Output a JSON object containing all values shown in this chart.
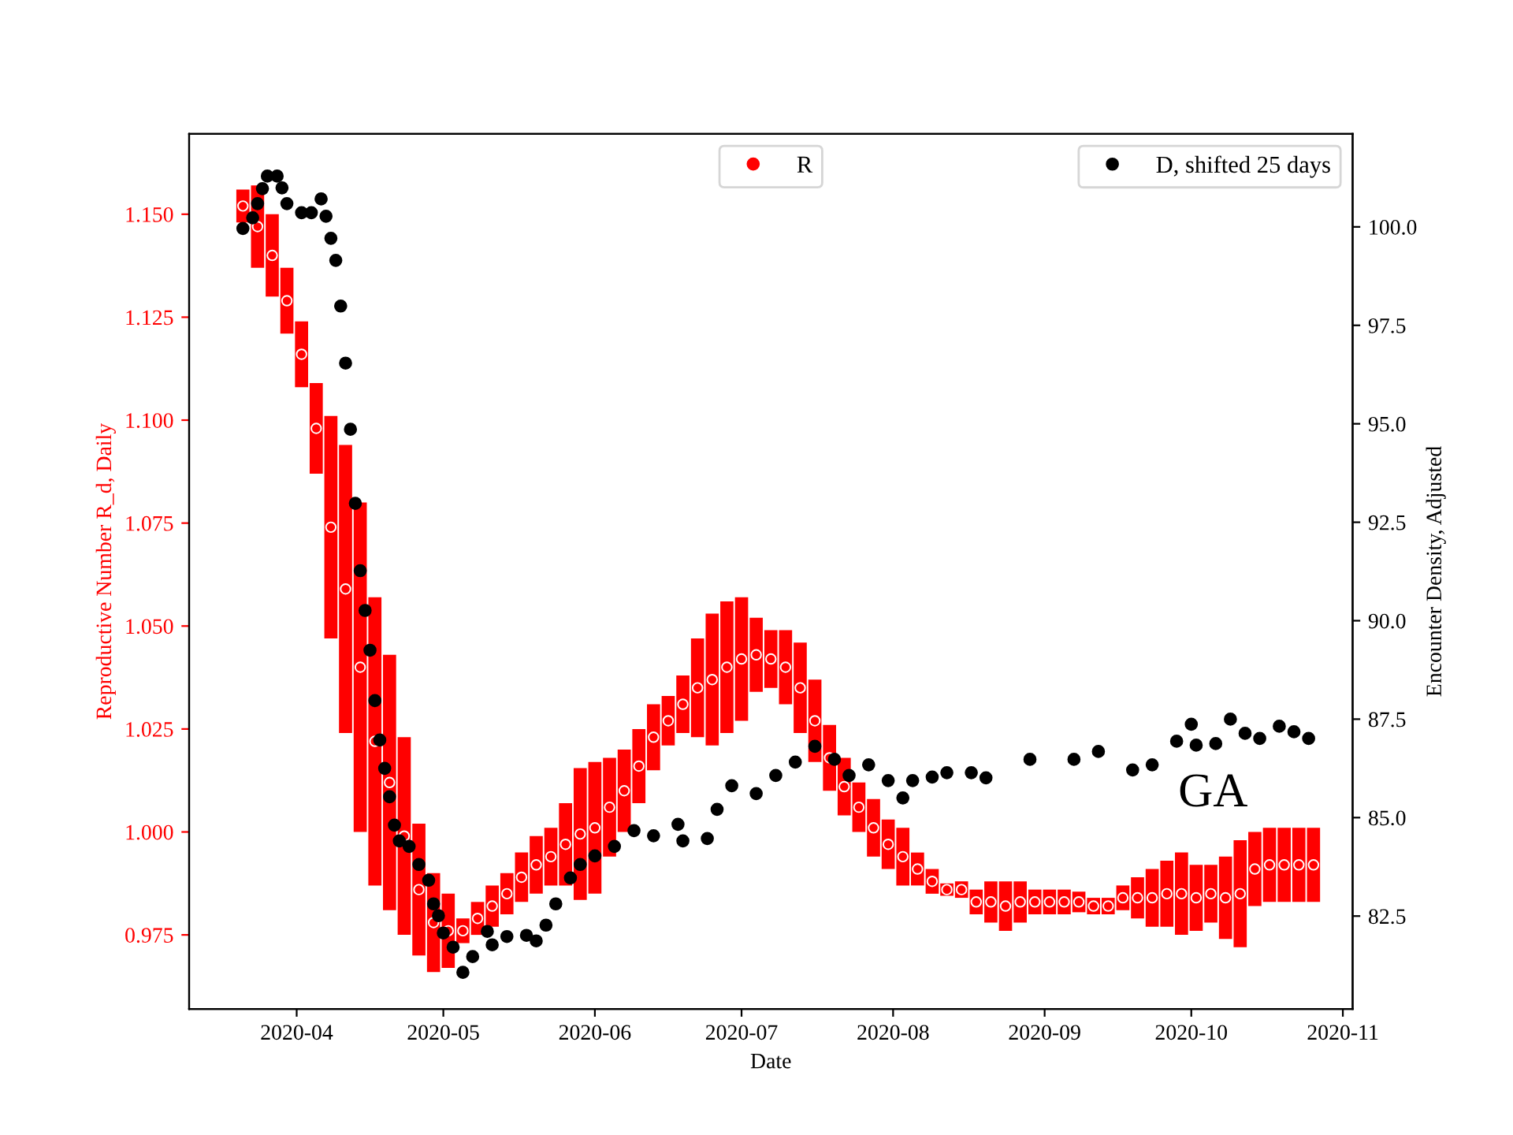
{
  "chart_data": {
    "type": "scatter",
    "xlabel": "Date",
    "ylabel": "Reproductive Number R_d, Daily",
    "y2label": "Encounter Density, Adjusted",
    "annotations": [
      "GA"
    ],
    "xlim": [
      "2020-03-10",
      "2020-11-03"
    ],
    "xticks": [
      {
        "value": "2020-04-01",
        "label": "2020-04"
      },
      {
        "value": "2020-05-01",
        "label": "2020-05"
      },
      {
        "value": "2020-06-01",
        "label": "2020-06"
      },
      {
        "value": "2020-07-01",
        "label": "2020-07"
      },
      {
        "value": "2020-08-01",
        "label": "2020-08"
      },
      {
        "value": "2020-09-01",
        "label": "2020-09"
      },
      {
        "value": "2020-10-01",
        "label": "2020-10"
      },
      {
        "value": "2020-11-01",
        "label": "2020-11"
      }
    ],
    "ylim": [
      0.957,
      1.1695
    ],
    "yticks": [
      0.975,
      {
        "value": 1.0,
        "label": "1.000"
      },
      1.025,
      {
        "value": 1.05,
        "label": "1.050"
      },
      1.075,
      {
        "value": 1.1,
        "label": "1.100"
      },
      1.125,
      {
        "value": 1.15,
        "label": "1.150"
      }
    ],
    "y2lim": [
      80.14,
      102.36
    ],
    "y2ticks": [
      82.5,
      {
        "value": 85,
        "label": "85.0"
      },
      87.5,
      {
        "value": 90,
        "label": "90.0"
      },
      92.5,
      {
        "value": 95,
        "label": "95.0"
      },
      97.5,
      {
        "value": 100,
        "label": "100.0"
      }
    ],
    "marker": "circle",
    "grid": false,
    "legend": "top right",
    "series": [
      {
        "name": "R",
        "color": "#ff0000",
        "x": [
          "2020-03-21",
          "2020-03-24",
          "2020-03-27",
          "2020-03-30",
          "2020-04-02",
          "2020-04-05",
          "2020-04-08",
          "2020-04-11",
          "2020-04-14",
          "2020-04-17",
          "2020-04-20",
          "2020-04-23",
          "2020-04-26",
          "2020-04-29",
          "2020-05-02",
          "2020-05-05",
          "2020-05-08",
          "2020-05-11",
          "2020-05-14",
          "2020-05-17",
          "2020-05-20",
          "2020-05-23",
          "2020-05-26",
          "2020-05-29",
          "2020-06-01",
          "2020-06-04",
          "2020-06-07",
          "2020-06-10",
          "2020-06-13",
          "2020-06-16",
          "2020-06-19",
          "2020-06-22",
          "2020-06-25",
          "2020-06-28",
          "2020-07-01",
          "2020-07-04",
          "2020-07-07",
          "2020-07-10",
          "2020-07-13",
          "2020-07-16",
          "2020-07-19",
          "2020-07-22",
          "2020-07-25",
          "2020-07-28",
          "2020-07-31",
          "2020-08-03",
          "2020-08-06",
          "2020-08-09",
          "2020-08-12",
          "2020-08-15",
          "2020-08-18",
          "2020-08-21",
          "2020-08-24",
          "2020-08-27",
          "2020-08-30",
          "2020-09-02",
          "2020-09-05",
          "2020-09-08",
          "2020-09-11",
          "2020-09-14",
          "2020-09-17",
          "2020-09-20",
          "2020-09-23",
          "2020-09-26",
          "2020-09-29",
          "2020-10-02",
          "2020-10-05",
          "2020-10-08",
          "2020-10-11",
          "2020-10-14",
          "2020-10-17",
          "2020-10-20",
          "2020-10-23",
          "2020-10-26"
        ],
        "values": [
          1.152,
          1.147,
          1.14,
          1.129,
          1.116,
          1.098,
          1.074,
          1.059,
          1.04,
          1.022,
          1.012,
          0.999,
          0.986,
          0.978,
          0.976,
          0.976,
          0.979,
          0.982,
          0.985,
          0.989,
          0.992,
          0.994,
          0.997,
          0.9995,
          1.001,
          1.006,
          1.01,
          1.016,
          1.023,
          1.027,
          1.031,
          1.035,
          1.037,
          1.04,
          1.042,
          1.043,
          1.042,
          1.04,
          1.035,
          1.027,
          1.018,
          1.011,
          1.006,
          1.001,
          0.997,
          0.994,
          0.991,
          0.988,
          0.986,
          0.986,
          0.983,
          0.983,
          0.982,
          0.983,
          0.983,
          0.983,
          0.983,
          0.983,
          0.982,
          0.982,
          0.984,
          0.984,
          0.984,
          0.985,
          0.985,
          0.984,
          0.985,
          0.984,
          0.985,
          0.991,
          0.992,
          0.992,
          0.992,
          0.992
        ],
        "errors": [
          0.004,
          0.01,
          0.01,
          0.008,
          0.008,
          0.011,
          0.027,
          0.035,
          0.04,
          0.035,
          0.031,
          0.024,
          0.016,
          0.012,
          0.009,
          0.003,
          0.004,
          0.005,
          0.005,
          0.006,
          0.007,
          0.007,
          0.01,
          0.016,
          0.016,
          0.012,
          0.01,
          0.009,
          0.008,
          0.006,
          0.007,
          0.012,
          0.016,
          0.016,
          0.015,
          0.009,
          0.007,
          0.009,
          0.011,
          0.01,
          0.008,
          0.007,
          0.006,
          0.007,
          0.006,
          0.007,
          0.004,
          0.003,
          0.0015,
          0.002,
          0.003,
          0.005,
          0.006,
          0.005,
          0.003,
          0.003,
          0.003,
          0.0025,
          0.002,
          0.002,
          0.003,
          0.005,
          0.007,
          0.008,
          0.01,
          0.008,
          0.007,
          0.01,
          0.013,
          0.009,
          0.009,
          0.009,
          0.009,
          0.009
        ]
      },
      {
        "name": "D, shifted 25 days",
        "color": "#000000",
        "axis": "y2",
        "x": [
          "2020-03-21",
          "2020-03-23",
          "2020-03-24",
          "2020-03-25",
          "2020-03-26",
          "2020-03-28",
          "2020-03-29",
          "2020-03-30",
          "2020-04-02",
          "2020-04-04",
          "2020-04-06",
          "2020-04-07",
          "2020-04-08",
          "2020-04-09",
          "2020-04-10",
          "2020-04-11",
          "2020-04-12",
          "2020-04-13",
          "2020-04-14",
          "2020-04-15",
          "2020-04-16",
          "2020-04-17",
          "2020-04-18",
          "2020-04-19",
          "2020-04-20",
          "2020-04-21",
          "2020-04-22",
          "2020-04-24",
          "2020-04-26",
          "2020-04-28",
          "2020-04-29",
          "2020-04-30",
          "2020-05-01",
          "2020-05-03",
          "2020-05-05",
          "2020-05-07",
          "2020-05-10",
          "2020-05-11",
          "2020-05-14",
          "2020-05-18",
          "2020-05-20",
          "2020-05-22",
          "2020-05-24",
          "2020-05-27",
          "2020-05-29",
          "2020-06-01",
          "2020-06-05",
          "2020-06-09",
          "2020-06-13",
          "2020-06-18",
          "2020-06-19",
          "2020-06-24",
          "2020-06-26",
          "2020-06-29",
          "2020-07-04",
          "2020-07-08",
          "2020-07-12",
          "2020-07-16",
          "2020-07-20",
          "2020-07-23",
          "2020-07-27",
          "2020-07-31",
          "2020-08-03",
          "2020-08-05",
          "2020-08-09",
          "2020-08-12",
          "2020-08-17",
          "2020-08-20",
          "2020-08-29",
          "2020-09-07",
          "2020-09-12",
          "2020-09-19",
          "2020-09-23",
          "2020-09-28",
          "2020-10-01",
          "2020-10-02",
          "2020-10-06",
          "2020-10-09",
          "2020-10-12",
          "2020-10-15",
          "2020-10-19",
          "2020-10-22",
          "2020-10-25"
        ],
        "values": [
          99.96,
          100.23,
          100.59,
          100.97,
          101.29,
          101.29,
          100.99,
          100.59,
          100.36,
          100.36,
          100.71,
          100.27,
          99.71,
          99.15,
          97.99,
          96.54,
          94.86,
          92.98,
          91.27,
          90.26,
          89.25,
          87.97,
          86.97,
          86.25,
          85.53,
          84.81,
          84.41,
          84.27,
          83.81,
          83.41,
          82.81,
          82.51,
          82.07,
          81.71,
          81.07,
          81.47,
          82.11,
          81.77,
          81.98,
          82.01,
          81.87,
          82.27,
          82.81,
          83.47,
          83.81,
          84.03,
          84.27,
          84.67,
          84.54,
          84.83,
          84.41,
          84.47,
          85.21,
          85.81,
          85.61,
          86.07,
          86.41,
          86.81,
          86.48,
          86.07,
          86.34,
          85.94,
          85.5,
          85.94,
          86.03,
          86.14,
          86.14,
          86.01,
          86.48,
          86.48,
          86.68,
          86.21,
          86.34,
          86.94,
          87.37,
          86.84,
          86.88,
          87.5,
          87.14,
          87.01,
          87.32,
          87.18,
          87.01
        ]
      }
    ]
  }
}
